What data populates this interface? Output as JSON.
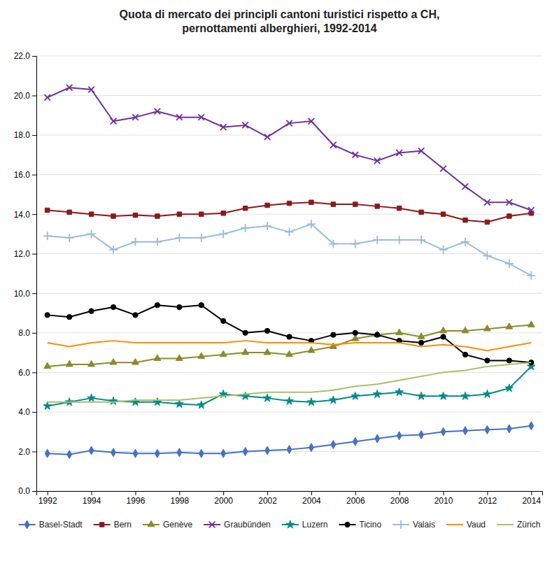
{
  "chart_data": {
    "type": "line",
    "title": "Quota di mercato dei principli cantoni turistici rispetto a CH,\npernottamenti alberghieri, 1992-2014",
    "x": [
      1992,
      1993,
      1994,
      1995,
      1996,
      1997,
      1998,
      1999,
      2000,
      2001,
      2002,
      2003,
      2004,
      2005,
      2006,
      2007,
      2008,
      2009,
      2010,
      2011,
      2012,
      2013,
      2014
    ],
    "series": [
      {
        "name": "Basel-Stadt",
        "color": "#4472C4",
        "marker": "diamond",
        "values": [
          1.9,
          1.85,
          2.05,
          1.95,
          1.9,
          1.9,
          1.95,
          1.9,
          1.9,
          2.0,
          2.05,
          2.1,
          2.2,
          2.35,
          2.5,
          2.65,
          2.8,
          2.85,
          3.0,
          3.05,
          3.1,
          3.15,
          3.3
        ]
      },
      {
        "name": "Bern",
        "color": "#8B1A1A",
        "marker": "square",
        "values": [
          14.2,
          14.1,
          14.0,
          13.9,
          13.95,
          13.9,
          14.0,
          14.0,
          14.05,
          14.3,
          14.45,
          14.55,
          14.6,
          14.5,
          14.5,
          14.4,
          14.3,
          14.1,
          14.0,
          13.7,
          13.6,
          13.9,
          14.05
        ]
      },
      {
        "name": "Genève",
        "color": "#8B8B2B",
        "marker": "triangle",
        "values": [
          6.3,
          6.4,
          6.4,
          6.5,
          6.5,
          6.7,
          6.7,
          6.8,
          6.9,
          7.0,
          7.0,
          6.9,
          7.1,
          7.3,
          7.7,
          7.9,
          8.0,
          7.8,
          8.1,
          8.1,
          8.2,
          8.3,
          8.4
        ]
      },
      {
        "name": "Graubünden",
        "color": "#7030A0",
        "marker": "x",
        "values": [
          19.9,
          20.4,
          20.3,
          18.7,
          18.9,
          19.2,
          18.9,
          18.9,
          18.4,
          18.5,
          17.9,
          18.6,
          18.7,
          17.5,
          17.0,
          16.7,
          17.1,
          17.2,
          16.3,
          15.4,
          14.6,
          14.6,
          14.2
        ]
      },
      {
        "name": "Luzern",
        "color": "#008B8B",
        "marker": "star",
        "values": [
          4.3,
          4.5,
          4.7,
          4.55,
          4.5,
          4.5,
          4.4,
          4.35,
          4.9,
          4.8,
          4.7,
          4.55,
          4.5,
          4.6,
          4.8,
          4.9,
          5.0,
          4.8,
          4.8,
          4.8,
          4.9,
          5.2,
          6.3
        ]
      },
      {
        "name": "Ticino",
        "color": "#000000",
        "marker": "circle",
        "values": [
          8.9,
          8.8,
          9.1,
          9.3,
          8.9,
          9.4,
          9.3,
          9.4,
          8.6,
          8.0,
          8.1,
          7.8,
          7.6,
          7.9,
          8.0,
          7.9,
          7.6,
          7.5,
          7.8,
          6.9,
          6.6,
          6.6,
          6.5
        ]
      },
      {
        "name": "Valais",
        "color": "#99BBDD",
        "marker": "plus",
        "values": [
          12.9,
          12.8,
          13.0,
          12.2,
          12.6,
          12.6,
          12.8,
          12.8,
          13.0,
          13.3,
          13.4,
          13.1,
          13.5,
          12.5,
          12.5,
          12.7,
          12.7,
          12.7,
          12.2,
          12.6,
          11.9,
          11.5,
          10.9
        ]
      },
      {
        "name": "Vaud",
        "color": "#FF8C00",
        "values": [
          7.5,
          7.3,
          7.5,
          7.6,
          7.5,
          7.5,
          7.5,
          7.5,
          7.5,
          7.6,
          7.5,
          7.5,
          7.5,
          7.4,
          7.5,
          7.5,
          7.5,
          7.3,
          7.4,
          7.3,
          7.1,
          7.3,
          7.5
        ]
      },
      {
        "name": "Zürich",
        "color": "#AABF6B",
        "values": [
          4.5,
          4.5,
          4.5,
          4.5,
          4.6,
          4.6,
          4.6,
          4.7,
          4.8,
          4.9,
          5.0,
          5.0,
          5.0,
          5.1,
          5.3,
          5.4,
          5.6,
          5.8,
          6.0,
          6.1,
          6.3,
          6.4,
          6.5
        ]
      }
    ],
    "xlim": [
      1991.5,
      2014.5
    ],
    "xticks": [
      1992,
      1994,
      1996,
      1998,
      2000,
      2002,
      2004,
      2006,
      2008,
      2010,
      2012,
      2014
    ],
    "ylim": [
      0.0,
      22.0
    ],
    "yticks": [
      {
        "value": 0.0,
        "label": "0.0"
      },
      {
        "value": 2.0,
        "label": "2.0"
      },
      {
        "value": 4.0,
        "label": "4.0"
      },
      {
        "value": 6.0,
        "label": "6.0"
      },
      {
        "value": 8.0,
        "label": "8.0"
      },
      {
        "value": 10.0,
        "label": "10.0"
      },
      {
        "value": 12.0,
        "label": "12.0"
      },
      {
        "value": 14.0,
        "label": "14.0"
      },
      {
        "value": 16.0,
        "label": "16.0"
      },
      {
        "value": 18.0,
        "label": "18.0"
      },
      {
        "value": 20.0,
        "label": "20.0"
      },
      {
        "value": 22.0,
        "label": "22.0"
      }
    ],
    "grid": true,
    "legend": "bottom"
  }
}
